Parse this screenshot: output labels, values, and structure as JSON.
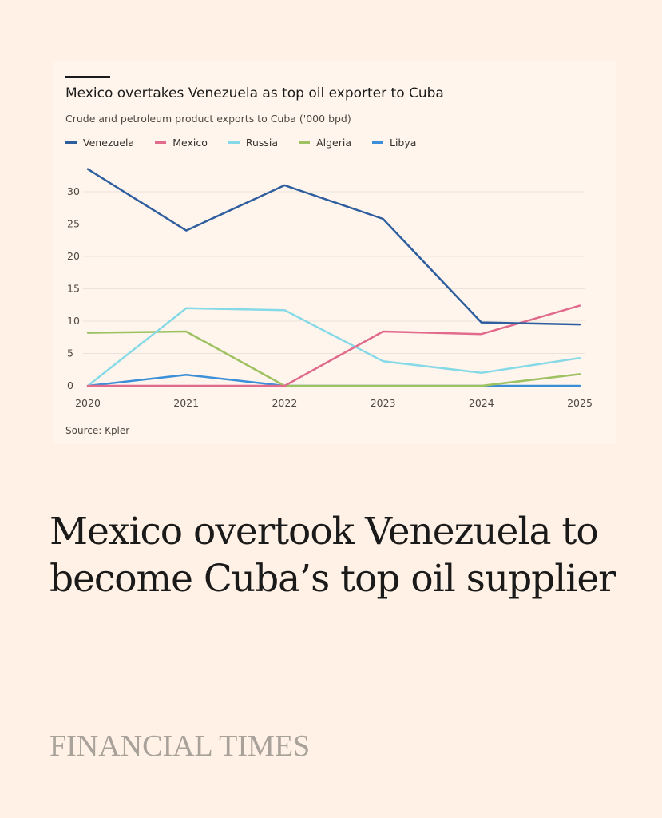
{
  "chart_data": {
    "type": "line",
    "title": "Mexico overtakes Venezuela as top oil exporter to Cuba",
    "subtitle": "Crude and petroleum product exports to Cuba ('000 bpd)",
    "source": "Source: Kpler",
    "x": [
      2020,
      2021,
      2022,
      2023,
      2024,
      2025
    ],
    "x_tick_labels": [
      "2020",
      "2021",
      "2022",
      "2023",
      "2024",
      "2025"
    ],
    "y_tick_labels": [
      "0",
      "5",
      "10",
      "15",
      "20",
      "25",
      "30"
    ],
    "ylim": [
      0,
      30
    ],
    "grid": "horizontal",
    "legend_placement": "top-left",
    "series": [
      {
        "name": "Venezuela",
        "color": "#2e5e9e",
        "values": [
          33.5,
          24,
          31,
          25.8,
          9.8,
          9.5
        ]
      },
      {
        "name": "Mexico",
        "color": "#e06b8c",
        "values": [
          0,
          0,
          0,
          8.4,
          8,
          12.4
        ]
      },
      {
        "name": "Russia",
        "color": "#86d9e6",
        "values": [
          0,
          12,
          11.7,
          3.8,
          2,
          4.3
        ]
      },
      {
        "name": "Algeria",
        "color": "#9ec162",
        "values": [
          8.2,
          8.4,
          0,
          0,
          0,
          1.8
        ]
      },
      {
        "name": "Libya",
        "color": "#3a8fd8",
        "values": [
          0,
          1.7,
          0,
          0,
          0,
          0
        ]
      }
    ]
  },
  "headline": "Mexico overtook Venezuela to become Cuba’s top oil supplier",
  "brand": "FINANCIAL TIMES"
}
